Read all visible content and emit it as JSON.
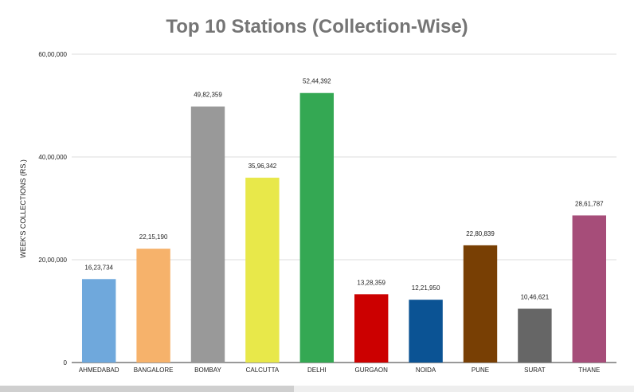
{
  "chart_data": {
    "type": "bar",
    "title": "Top 10 Stations (Collection-Wise)",
    "xlabel": "",
    "ylabel": "WEEK'S COLLECTIONS (RS.)",
    "ylim": [
      0,
      6000000
    ],
    "yticks": [
      0,
      2000000,
      4000000,
      6000000
    ],
    "ytick_labels": [
      "0",
      "20,00,000",
      "40,00,000",
      "60,00,000"
    ],
    "grid": true,
    "legend": "none",
    "categories": [
      "AHMEDABAD",
      "BANGALORE",
      "BOMBAY",
      "CALCUTTA",
      "DELHI",
      "GURGAON",
      "NOIDA",
      "PUNE",
      "SURAT",
      "THANE"
    ],
    "values": [
      1623734,
      2215190,
      4982359,
      3596342,
      5244392,
      1328359,
      1221950,
      2280839,
      1046621,
      2861787
    ],
    "value_labels": [
      "16,23,734",
      "22,15,190",
      "49,82,359",
      "35,96,342",
      "52,44,392",
      "13,28,359",
      "12,21,950",
      "22,80,839",
      "10,46,621",
      "28,61,787"
    ],
    "colors": [
      "#6fa8dc",
      "#f6b26b",
      "#999999",
      "#e8e84a",
      "#34a853",
      "#cc0000",
      "#0b5394",
      "#783f04",
      "#666666",
      "#a64d79"
    ]
  }
}
